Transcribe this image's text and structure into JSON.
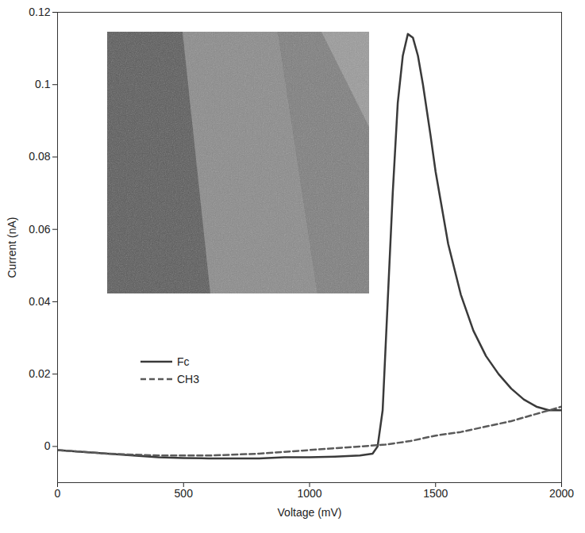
{
  "chart_data": {
    "type": "line",
    "x_label": "Voltage (mV)",
    "y_label": "Current (nA)",
    "xlim": [
      0,
      2000
    ],
    "xticks": [
      0,
      500,
      1000,
      1500,
      2000
    ],
    "ylim": [
      -0.01,
      0.12
    ],
    "yticks": [
      0,
      0.02,
      0.04,
      0.06,
      0.08,
      0.1,
      0.12
    ],
    "legend": "left",
    "series": [
      {
        "name": "Fc",
        "color": "#3a3a3a",
        "line_style": "solid",
        "x": [
          0,
          100,
          200,
          300,
          400,
          500,
          600,
          700,
          800,
          900,
          1000,
          1100,
          1200,
          1250,
          1270,
          1290,
          1310,
          1330,
          1350,
          1370,
          1390,
          1410,
          1430,
          1450,
          1480,
          1500,
          1550,
          1600,
          1650,
          1700,
          1750,
          1800,
          1850,
          1900,
          1950,
          2000
        ],
        "values": [
          -0.001,
          -0.0015,
          -0.002,
          -0.0025,
          -0.003,
          -0.0032,
          -0.0033,
          -0.0033,
          -0.0033,
          -0.003,
          -0.003,
          -0.0028,
          -0.0025,
          -0.002,
          0.0,
          0.01,
          0.04,
          0.07,
          0.095,
          0.108,
          0.114,
          0.113,
          0.108,
          0.1,
          0.086,
          0.076,
          0.056,
          0.042,
          0.032,
          0.025,
          0.02,
          0.016,
          0.013,
          0.011,
          0.01,
          0.01
        ]
      },
      {
        "name": "CH3",
        "color": "#5a5a5a",
        "line_style": "dashed",
        "x": [
          0,
          200,
          400,
          600,
          800,
          1000,
          1200,
          1300,
          1400,
          1500,
          1600,
          1700,
          1800,
          1900,
          2000
        ],
        "values": [
          -0.001,
          -0.002,
          -0.0025,
          -0.0025,
          -0.002,
          -0.001,
          0.0,
          0.0005,
          0.0015,
          0.003,
          0.004,
          0.0055,
          0.007,
          0.009,
          0.011
        ]
      }
    ]
  }
}
